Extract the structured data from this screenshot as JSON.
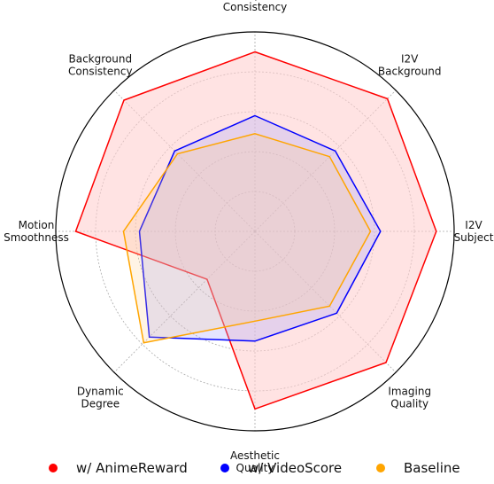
{
  "chart_data": {
    "type": "radar",
    "axes": [
      {
        "label": "Subject\nConsistency"
      },
      {
        "label": "I2V\nBackground"
      },
      {
        "label": "I2V\nSubject"
      },
      {
        "label": "Imaging\nQuality"
      },
      {
        "label": "Aesthetic\nQuality"
      },
      {
        "label": "Dynamic\nDegree"
      },
      {
        "label": "Motion\nSmoothness"
      },
      {
        "label": "Background\nConsistency"
      }
    ],
    "rlim": [
      0,
      1
    ],
    "grid_rings": [
      0.2,
      0.4,
      0.6,
      0.8
    ],
    "grid": true,
    "legend_position": "bottom",
    "series": [
      {
        "name": "w/ AnimeReward",
        "color": "#ff0000",
        "fill": "#ffcccc",
        "fill_opacity": 0.55,
        "values": [
          0.9,
          0.94,
          0.91,
          0.93,
          0.89,
          0.34,
          0.9,
          0.93
        ]
      },
      {
        "name": "w/ VideoScore",
        "color": "#0000ff",
        "fill": "#aaaaff",
        "fill_opacity": 0.3,
        "values": [
          0.58,
          0.57,
          0.63,
          0.58,
          0.55,
          0.75,
          0.58,
          0.57
        ]
      },
      {
        "name": "Baseline",
        "color": "#ffa500",
        "fill": "#ffcc88",
        "fill_opacity": 0.22,
        "values": [
          0.49,
          0.53,
          0.58,
          0.53,
          0.45,
          0.79,
          0.66,
          0.55
        ]
      }
    ]
  }
}
